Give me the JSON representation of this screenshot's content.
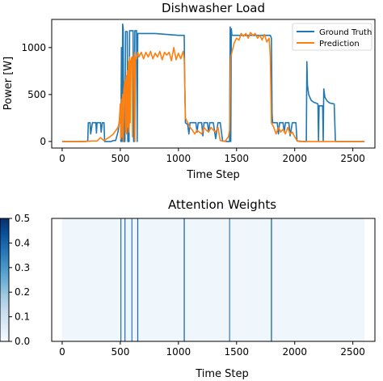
{
  "chart_data": [
    {
      "type": "line",
      "title": "Dishwasher Load",
      "xlabel": "Time Step",
      "ylabel": "Power [W]",
      "xlim": [
        -90,
        2690
      ],
      "ylim": [
        -70,
        1300
      ],
      "xticks": [
        0,
        500,
        1000,
        1500,
        2000,
        2500
      ],
      "yticks": [
        0,
        500,
        1000
      ],
      "grid": false,
      "legend": "top-right",
      "series": [
        {
          "name": "Ground Truth",
          "color": "#1f77b4",
          "points": [
            [
              0,
              0
            ],
            [
              100,
              0
            ],
            [
              200,
              0
            ],
            [
              220,
              5
            ],
            [
              225,
              200
            ],
            [
              240,
              200
            ],
            [
              245,
              80
            ],
            [
              260,
              200
            ],
            [
              290,
              200
            ],
            [
              295,
              90
            ],
            [
              300,
              200
            ],
            [
              330,
              200
            ],
            [
              335,
              100
            ],
            [
              345,
              200
            ],
            [
              360,
              200
            ],
            [
              365,
              0
            ],
            [
              420,
              0
            ],
            [
              440,
              10
            ],
            [
              460,
              10
            ],
            [
              480,
              100
            ],
            [
              500,
              300
            ],
            [
              505,
              0
            ],
            [
              510,
              1000
            ],
            [
              515,
              0
            ],
            [
              520,
              1250
            ],
            [
              525,
              1200
            ],
            [
              530,
              0
            ],
            [
              540,
              0
            ],
            [
              545,
              1170
            ],
            [
              560,
              1170
            ],
            [
              565,
              0
            ],
            [
              575,
              0
            ],
            [
              580,
              1180
            ],
            [
              610,
              1180
            ],
            [
              615,
              0
            ],
            [
              620,
              0
            ],
            [
              625,
              1180
            ],
            [
              640,
              1180
            ],
            [
              645,
              0
            ],
            [
              650,
              1150
            ],
            [
              700,
              1150
            ],
            [
              800,
              1150
            ],
            [
              900,
              1140
            ],
            [
              1000,
              1130
            ],
            [
              1050,
              1130
            ],
            [
              1055,
              600
            ],
            [
              1060,
              200
            ],
            [
              1080,
              180
            ],
            [
              1090,
              80
            ],
            [
              1100,
              200
            ],
            [
              1150,
              200
            ],
            [
              1160,
              100
            ],
            [
              1170,
              200
            ],
            [
              1200,
              200
            ],
            [
              1210,
              60
            ],
            [
              1220,
              200
            ],
            [
              1250,
              200
            ],
            [
              1260,
              100
            ],
            [
              1270,
              200
            ],
            [
              1300,
              200
            ],
            [
              1320,
              30
            ],
            [
              1340,
              200
            ],
            [
              1360,
              200
            ],
            [
              1380,
              5
            ],
            [
              1420,
              0
            ],
            [
              1440,
              0
            ],
            [
              1445,
              1220
            ],
            [
              1450,
              0
            ],
            [
              1455,
              1200
            ],
            [
              1460,
              1130
            ],
            [
              1500,
              1130
            ],
            [
              1600,
              1130
            ],
            [
              1700,
              1130
            ],
            [
              1790,
              1130
            ],
            [
              1800,
              1100
            ],
            [
              1805,
              300
            ],
            [
              1810,
              200
            ],
            [
              1850,
              200
            ],
            [
              1860,
              80
            ],
            [
              1870,
              200
            ],
            [
              1900,
              200
            ],
            [
              1910,
              100
            ],
            [
              1920,
              200
            ],
            [
              1950,
              200
            ],
            [
              1960,
              60
            ],
            [
              1980,
              200
            ],
            [
              2010,
              200
            ],
            [
              2020,
              5
            ],
            [
              2080,
              0
            ],
            [
              2100,
              0
            ],
            [
              2105,
              850
            ],
            [
              2110,
              600
            ],
            [
              2120,
              500
            ],
            [
              2140,
              440
            ],
            [
              2160,
              420
            ],
            [
              2180,
              410
            ],
            [
              2200,
              400
            ],
            [
              2205,
              0
            ],
            [
              2210,
              380
            ],
            [
              2240,
              380
            ],
            [
              2245,
              0
            ],
            [
              2250,
              560
            ],
            [
              2260,
              470
            ],
            [
              2280,
              430
            ],
            [
              2300,
              410
            ],
            [
              2340,
              400
            ],
            [
              2350,
              0
            ],
            [
              2600,
              0
            ]
          ]
        },
        {
          "name": "Prediction",
          "color": "#ff7f0e",
          "points": [
            [
              0,
              0
            ],
            [
              100,
              0
            ],
            [
              200,
              0
            ],
            [
              250,
              5
            ],
            [
              300,
              5
            ],
            [
              330,
              40
            ],
            [
              360,
              10
            ],
            [
              400,
              40
            ],
            [
              440,
              80
            ],
            [
              480,
              150
            ],
            [
              490,
              200
            ],
            [
              500,
              400
            ],
            [
              505,
              30
            ],
            [
              510,
              450
            ],
            [
              515,
              50
            ],
            [
              520,
              500
            ],
            [
              525,
              0
            ],
            [
              530,
              550
            ],
            [
              535,
              600
            ],
            [
              540,
              650
            ],
            [
              545,
              100
            ],
            [
              550,
              700
            ],
            [
              555,
              80
            ],
            [
              560,
              750
            ],
            [
              565,
              150
            ],
            [
              570,
              850
            ],
            [
              575,
              100
            ],
            [
              580,
              900
            ],
            [
              585,
              200
            ],
            [
              590,
              850
            ],
            [
              600,
              900
            ],
            [
              605,
              50
            ],
            [
              610,
              850
            ],
            [
              620,
              950
            ],
            [
              625,
              0
            ],
            [
              630,
              900
            ],
            [
              640,
              880
            ],
            [
              650,
              950
            ],
            [
              660,
              900
            ],
            [
              680,
              950
            ],
            [
              700,
              880
            ],
            [
              720,
              950
            ],
            [
              740,
              900
            ],
            [
              760,
              960
            ],
            [
              780,
              880
            ],
            [
              800,
              940
            ],
            [
              820,
              900
            ],
            [
              840,
              960
            ],
            [
              860,
              870
            ],
            [
              880,
              950
            ],
            [
              900,
              920
            ],
            [
              920,
              950
            ],
            [
              940,
              860
            ],
            [
              960,
              1000
            ],
            [
              980,
              870
            ],
            [
              1000,
              940
            ],
            [
              1020,
              880
            ],
            [
              1040,
              960
            ],
            [
              1050,
              880
            ],
            [
              1060,
              250
            ],
            [
              1080,
              200
            ],
            [
              1100,
              150
            ],
            [
              1120,
              120
            ],
            [
              1140,
              80
            ],
            [
              1160,
              120
            ],
            [
              1180,
              100
            ],
            [
              1200,
              80
            ],
            [
              1220,
              150
            ],
            [
              1240,
              120
            ],
            [
              1260,
              100
            ],
            [
              1280,
              150
            ],
            [
              1300,
              120
            ],
            [
              1320,
              100
            ],
            [
              1340,
              150
            ],
            [
              1360,
              10
            ],
            [
              1400,
              0
            ],
            [
              1430,
              50
            ],
            [
              1440,
              120
            ],
            [
              1450,
              900
            ],
            [
              1460,
              950
            ],
            [
              1480,
              1050
            ],
            [
              1500,
              1100
            ],
            [
              1520,
              1080
            ],
            [
              1540,
              1150
            ],
            [
              1560,
              1120
            ],
            [
              1580,
              1150
            ],
            [
              1600,
              1100
            ],
            [
              1620,
              1160
            ],
            [
              1640,
              1130
            ],
            [
              1660,
              1150
            ],
            [
              1680,
              1100
            ],
            [
              1700,
              1130
            ],
            [
              1720,
              1080
            ],
            [
              1740,
              1140
            ],
            [
              1760,
              1060
            ],
            [
              1780,
              1100
            ],
            [
              1790,
              900
            ],
            [
              1800,
              200
            ],
            [
              1820,
              150
            ],
            [
              1840,
              80
            ],
            [
              1860,
              150
            ],
            [
              1880,
              100
            ],
            [
              1900,
              130
            ],
            [
              1920,
              80
            ],
            [
              1940,
              150
            ],
            [
              1960,
              80
            ],
            [
              1980,
              100
            ],
            [
              2000,
              50
            ],
            [
              2020,
              10
            ],
            [
              2040,
              0
            ],
            [
              2600,
              0
            ]
          ]
        }
      ]
    },
    {
      "type": "heatmap",
      "title": "Attention Weights",
      "xlabel": "Time Step",
      "xlim": [
        -90,
        2690
      ],
      "xticks": [
        0,
        500,
        1000,
        1500,
        2000,
        2500
      ],
      "background_weight": 0.02,
      "x_extent": [
        0,
        2600
      ],
      "spikes": [
        {
          "x": 505,
          "weight": 0.2
        },
        {
          "x": 540,
          "weight": 0.2
        },
        {
          "x": 600,
          "weight": 0.18
        },
        {
          "x": 650,
          "weight": 0.22
        },
        {
          "x": 1050,
          "weight": 0.25
        },
        {
          "x": 1440,
          "weight": 0.18
        },
        {
          "x": 1800,
          "weight": 0.25
        }
      ],
      "colorbar": {
        "cmap": "Blues",
        "range": [
          0.0,
          0.5
        ],
        "ticks": [
          "0.0",
          "0.1",
          "0.2",
          "0.3",
          "0.4",
          "0.5"
        ]
      }
    }
  ]
}
